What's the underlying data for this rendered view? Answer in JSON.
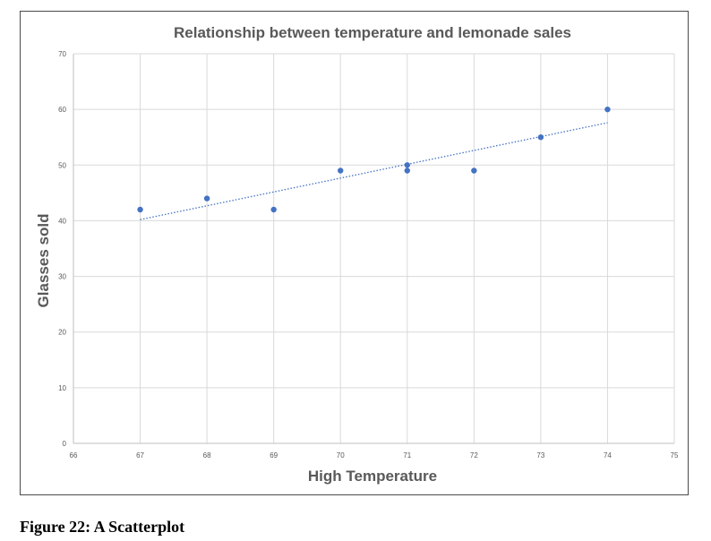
{
  "caption": "Figure 22: A Scatterplot",
  "chart_data": {
    "type": "scatter",
    "title": "Relationship between temperature and lemonade sales",
    "xlabel": "High Temperature",
    "ylabel": "Glasses sold",
    "xlim": [
      66,
      75
    ],
    "ylim": [
      0,
      70
    ],
    "x_ticks": [
      66,
      67,
      68,
      69,
      70,
      71,
      72,
      73,
      74,
      75
    ],
    "y_ticks": [
      0,
      10,
      20,
      30,
      40,
      50,
      60,
      70
    ],
    "grid": true,
    "legend": "none",
    "points": [
      {
        "x": 67,
        "y": 42
      },
      {
        "x": 68,
        "y": 44
      },
      {
        "x": 69,
        "y": 42
      },
      {
        "x": 70,
        "y": 49
      },
      {
        "x": 71,
        "y": 50
      },
      {
        "x": 71,
        "y": 49
      },
      {
        "x": 72,
        "y": 49
      },
      {
        "x": 73,
        "y": 55
      },
      {
        "x": 74,
        "y": 60
      }
    ],
    "trendline": {
      "style": "dotted",
      "x": [
        67,
        74
      ],
      "y": [
        40.2,
        57.6
      ]
    },
    "colors": {
      "points": "#4472c4",
      "trendline": "#4472c4",
      "grid": "#d9d9d9",
      "text": "#595959"
    }
  }
}
